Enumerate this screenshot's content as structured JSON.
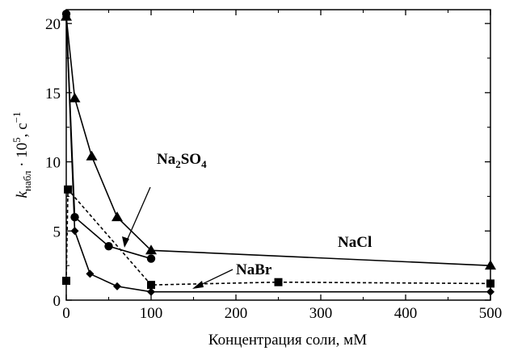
{
  "chart_data": {
    "type": "line",
    "xlabel": "Концентрация соли, мМ",
    "ylabel_main": "k",
    "ylabel_sub": "набл",
    "ylabel_rest": " · 10",
    "ylabel_exp1": "5",
    "ylabel_unit": ", с",
    "ylabel_exp2": "−1",
    "xlim": [
      0,
      500
    ],
    "ylim": [
      0,
      21
    ],
    "xticks": [
      0,
      100,
      200,
      300,
      400,
      500
    ],
    "yticks": [
      0,
      5,
      10,
      15,
      20
    ],
    "xtick_labels": [
      "0",
      "100",
      "200",
      "300",
      "400",
      "500"
    ],
    "ytick_labels": [
      "0",
      "5",
      "10",
      "15",
      "20"
    ],
    "grid": false,
    "series": [
      {
        "name": "NaCl",
        "name_main": "NaCl",
        "marker": "triangle",
        "line": "solid",
        "x": [
          0,
          10,
          30,
          60,
          100,
          500
        ],
        "y": [
          20.5,
          14.6,
          10.4,
          6.0,
          3.6,
          2.5
        ]
      },
      {
        "name": "Na2SO4",
        "name_main": "Na",
        "name_sub1": "2",
        "name_mid": "SO",
        "name_sub2": "4",
        "marker": "circle",
        "line": "solid",
        "x": [
          0,
          10,
          50,
          100
        ],
        "y": [
          20.7,
          6.0,
          3.9,
          3.0
        ]
      },
      {
        "name": "NaBr",
        "name_main": "NaBr",
        "marker": "diamond",
        "line": "solid",
        "x": [
          0,
          10,
          28,
          60,
          100,
          500
        ],
        "y": [
          20.5,
          5.0,
          1.9,
          1.0,
          0.6,
          0.6
        ]
      },
      {
        "name": "",
        "marker": "square",
        "line": "dashed",
        "x": [
          0,
          2,
          100,
          250,
          500
        ],
        "y": [
          1.4,
          8.0,
          1.1,
          1.3,
          1.2
        ]
      }
    ]
  }
}
